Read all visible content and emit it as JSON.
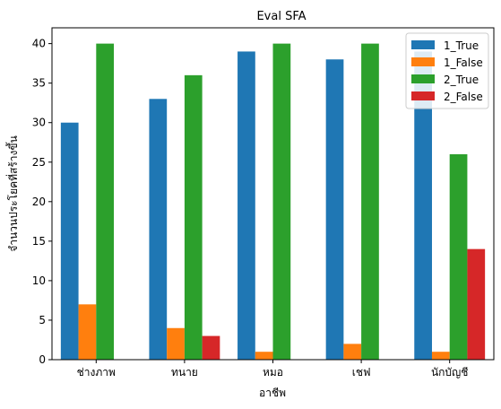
{
  "chart_data": {
    "type": "bar",
    "title": "Eval SFA",
    "xlabel": "อาชีพ",
    "ylabel": "จำนวนประโยคที่สร้างขึ้น",
    "categories": [
      "ช่างภาพ",
      "ทนาย",
      "หมอ",
      "เชฟ",
      "นักบัญชี"
    ],
    "series": [
      {
        "name": "1_True",
        "color": "#1f77b4",
        "values": [
          30,
          33,
          39,
          38,
          39
        ]
      },
      {
        "name": "1_False",
        "color": "#ff7f0e",
        "values": [
          7,
          4,
          1,
          2,
          1
        ]
      },
      {
        "name": "2_True",
        "color": "#2ca02c",
        "values": [
          40,
          36,
          40,
          40,
          26
        ]
      },
      {
        "name": "2_False",
        "color": "#d62728",
        "values": [
          0,
          3,
          0,
          0,
          14
        ]
      }
    ],
    "ylim": [
      0,
      42
    ],
    "yticks": [
      0,
      5,
      10,
      15,
      20,
      25,
      30,
      35,
      40
    ],
    "grid": false,
    "legend": "top-right"
  }
}
